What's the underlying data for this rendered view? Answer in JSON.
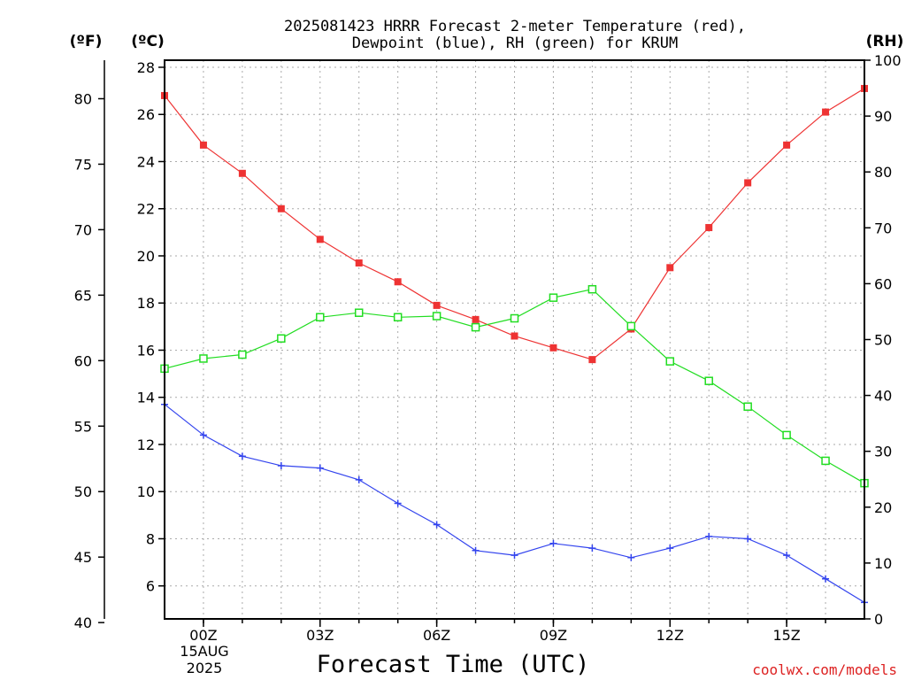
{
  "chart_data": {
    "type": "line",
    "title": "2025081423 HRRR Forecast 2-meter Temperature (red),",
    "subtitle": "Dewpoint (blue), RH (green) for KRUM",
    "xlabel": "Forecast Time (UTC)",
    "unit_labels": {
      "fahrenheit": "(ºF)",
      "celsius": "(ºC)",
      "rh": "(RH)"
    },
    "x_ticks": [
      {
        "hour": 0,
        "label": "00Z"
      },
      {
        "hour": 3,
        "label": "03Z"
      },
      {
        "hour": 6,
        "label": "06Z"
      },
      {
        "hour": 9,
        "label": "09Z"
      },
      {
        "hour": 12,
        "label": "12Z"
      },
      {
        "hour": 15,
        "label": "15Z"
      }
    ],
    "date_label_lines": [
      "15AUG",
      "2025"
    ],
    "xlim": [
      -1,
      17
    ],
    "celsius_axis": {
      "ylim": [
        4.6,
        28.3
      ],
      "ticks": [
        6,
        8,
        10,
        12,
        14,
        16,
        18,
        20,
        22,
        24,
        26,
        28
      ]
    },
    "fahrenheit_axis": {
      "ticks": [
        40,
        45,
        50,
        55,
        60,
        65,
        70,
        75,
        80
      ]
    },
    "rh_axis": {
      "ylim": [
        0,
        100
      ],
      "ticks": [
        0,
        10,
        20,
        30,
        40,
        50,
        60,
        70,
        80,
        90,
        100
      ]
    },
    "x": [
      -1,
      0,
      1,
      2,
      3,
      4,
      5,
      6,
      7,
      8,
      9,
      10,
      11,
      12,
      13,
      14,
      15,
      16,
      17
    ],
    "series": [
      {
        "name": "Temperature",
        "color": "#ee3333",
        "marker": "filled-square",
        "axis": "celsius",
        "values": [
          26.8,
          24.7,
          23.5,
          22.0,
          20.7,
          19.7,
          18.9,
          17.9,
          17.3,
          16.6,
          16.1,
          15.6,
          16.9,
          19.5,
          21.2,
          23.1,
          24.7,
          26.1,
          27.1
        ]
      },
      {
        "name": "Dewpoint",
        "color": "#3344ee",
        "marker": "plus",
        "axis": "celsius",
        "values": [
          13.7,
          12.4,
          11.5,
          11.1,
          11.0,
          10.5,
          9.5,
          8.6,
          7.5,
          7.3,
          7.8,
          7.6,
          7.2,
          7.6,
          8.1,
          8.0,
          7.3,
          6.3,
          5.3
        ]
      },
      {
        "name": "RH",
        "color": "#22dd22",
        "marker": "open-square",
        "axis": "rh",
        "values": [
          44.8,
          46.6,
          47.3,
          50.2,
          54.0,
          54.8,
          54.0,
          54.2,
          52.2,
          53.8,
          57.5,
          59.0,
          52.4,
          46.1,
          42.6,
          38.0,
          32.9,
          28.3,
          24.3
        ]
      }
    ]
  },
  "footer": {
    "credit": "coolwx.com/models"
  }
}
